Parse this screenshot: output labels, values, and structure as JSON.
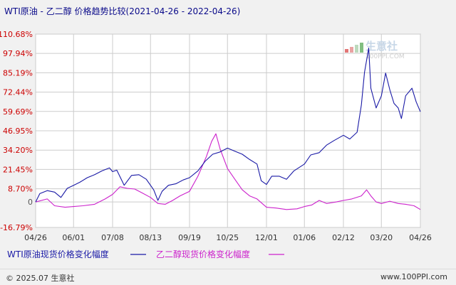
{
  "title": "WTI原油 - 乙二醇 价格趋势比较(2021-04-26 - 2022-04-26)",
  "watermark": {
    "cn": "生意社",
    "en": "100PPI.COM"
  },
  "footer": {
    "left": "© 2025.07 生意社",
    "right": "www.100PPI.com"
  },
  "colors": {
    "wti": "#1a1aa6",
    "meg": "#cc22cc",
    "grid": "#cccccc",
    "ytick_positive": "#cc0000",
    "ytick_zero": "#555555",
    "ytick_negative": "#cc0000"
  },
  "chart_data": {
    "type": "line",
    "y_unit": "%",
    "ylim": [
      -16.79,
      110.68
    ],
    "yticks": [
      -16.79,
      0,
      8.7,
      21.45,
      34.2,
      46.95,
      59.69,
      72.44,
      85.19,
      97.94,
      110.68
    ],
    "ytick_labels": [
      "-16.79%",
      "0",
      "8.70%",
      "21.45%",
      "34.20%",
      "46.95%",
      "59.69%",
      "72.44%",
      "85.19%",
      "97.94%",
      "110.68%"
    ],
    "xlim": [
      "2021-04-26",
      "2022-04-26"
    ],
    "xticks": [
      "2021-04-26",
      "2021-06-01",
      "2021-07-08",
      "2021-08-13",
      "2021-09-19",
      "2021-10-25",
      "2021-12-01",
      "2022-01-06",
      "2022-02-12",
      "2022-03-20",
      "2022-04-26"
    ],
    "xtick_labels": [
      "04/26",
      "06/01",
      "07/08",
      "08/13",
      "09/19",
      "10/25",
      "12/01",
      "01/06",
      "02/12",
      "03/20",
      "04/26"
    ],
    "legend_placement": "bottom",
    "grid": true,
    "series": [
      {
        "name": "WTI原油现货价格变化幅度",
        "color": "#1a1aa6",
        "points": [
          [
            "2021-04-26",
            0
          ],
          [
            "2021-04-30",
            5.5
          ],
          [
            "2021-05-07",
            7.5
          ],
          [
            "2021-05-14",
            6.5
          ],
          [
            "2021-05-20",
            3
          ],
          [
            "2021-05-26",
            9
          ],
          [
            "2021-06-01",
            11
          ],
          [
            "2021-06-07",
            13
          ],
          [
            "2021-06-14",
            16
          ],
          [
            "2021-06-21",
            18
          ],
          [
            "2021-06-28",
            20.5
          ],
          [
            "2021-07-05",
            22.5
          ],
          [
            "2021-07-08",
            20
          ],
          [
            "2021-07-12",
            21
          ],
          [
            "2021-07-19",
            11
          ],
          [
            "2021-07-26",
            17.5
          ],
          [
            "2021-08-02",
            18
          ],
          [
            "2021-08-09",
            15
          ],
          [
            "2021-08-16",
            8
          ],
          [
            "2021-08-20",
            1
          ],
          [
            "2021-08-24",
            7
          ],
          [
            "2021-08-30",
            11
          ],
          [
            "2021-09-06",
            12
          ],
          [
            "2021-09-13",
            14.5
          ],
          [
            "2021-09-19",
            16
          ],
          [
            "2021-09-27",
            20.5
          ],
          [
            "2021-10-04",
            27
          ],
          [
            "2021-10-11",
            31.5
          ],
          [
            "2021-10-18",
            33
          ],
          [
            "2021-10-25",
            35.5
          ],
          [
            "2021-11-01",
            33.5
          ],
          [
            "2021-11-08",
            31.5
          ],
          [
            "2021-11-15",
            28
          ],
          [
            "2021-11-22",
            25
          ],
          [
            "2021-11-26",
            14
          ],
          [
            "2021-12-01",
            11.5
          ],
          [
            "2021-12-06",
            17
          ],
          [
            "2021-12-13",
            17
          ],
          [
            "2021-12-20",
            15
          ],
          [
            "2021-12-27",
            20.5
          ],
          [
            "2022-01-06",
            25
          ],
          [
            "2022-01-12",
            31
          ],
          [
            "2022-01-20",
            32.5
          ],
          [
            "2022-01-27",
            37.5
          ],
          [
            "2022-02-03",
            40.5
          ],
          [
            "2022-02-12",
            44
          ],
          [
            "2022-02-18",
            41.5
          ],
          [
            "2022-02-25",
            46
          ],
          [
            "2022-03-01",
            64
          ],
          [
            "2022-03-04",
            85.5
          ],
          [
            "2022-03-08",
            101.5
          ],
          [
            "2022-03-10",
            75
          ],
          [
            "2022-03-15",
            62
          ],
          [
            "2022-03-20",
            70
          ],
          [
            "2022-03-24",
            85
          ],
          [
            "2022-03-28",
            74
          ],
          [
            "2022-04-01",
            65
          ],
          [
            "2022-04-05",
            62
          ],
          [
            "2022-04-08",
            55
          ],
          [
            "2022-04-12",
            70
          ],
          [
            "2022-04-18",
            75
          ],
          [
            "2022-04-22",
            66
          ],
          [
            "2022-04-26",
            59.5
          ]
        ]
      },
      {
        "name": "乙二醇现货价格变化幅度",
        "color": "#cc22cc",
        "points": [
          [
            "2021-04-26",
            0
          ],
          [
            "2021-05-07",
            2
          ],
          [
            "2021-05-14",
            -2.5
          ],
          [
            "2021-05-24",
            -3.5
          ],
          [
            "2021-06-01",
            -3
          ],
          [
            "2021-06-10",
            -2.5
          ],
          [
            "2021-06-21",
            -1.5
          ],
          [
            "2021-07-01",
            2
          ],
          [
            "2021-07-08",
            5
          ],
          [
            "2021-07-15",
            10
          ],
          [
            "2021-07-22",
            9
          ],
          [
            "2021-07-29",
            8.5
          ],
          [
            "2021-08-05",
            6
          ],
          [
            "2021-08-13",
            3
          ],
          [
            "2021-08-20",
            -1
          ],
          [
            "2021-08-27",
            -1.5
          ],
          [
            "2021-09-03",
            1
          ],
          [
            "2021-09-10",
            4
          ],
          [
            "2021-09-19",
            7
          ],
          [
            "2021-09-27",
            17
          ],
          [
            "2021-10-05",
            30
          ],
          [
            "2021-10-10",
            40
          ],
          [
            "2021-10-14",
            45
          ],
          [
            "2021-10-18",
            35
          ],
          [
            "2021-10-25",
            22
          ],
          [
            "2021-11-01",
            15
          ],
          [
            "2021-11-08",
            8
          ],
          [
            "2021-11-15",
            4
          ],
          [
            "2021-11-22",
            2
          ],
          [
            "2021-12-01",
            -3.5
          ],
          [
            "2021-12-10",
            -4
          ],
          [
            "2021-12-20",
            -5
          ],
          [
            "2021-12-30",
            -4.5
          ],
          [
            "2022-01-06",
            -3
          ],
          [
            "2022-01-13",
            -2
          ],
          [
            "2022-01-20",
            1
          ],
          [
            "2022-01-27",
            -1
          ],
          [
            "2022-02-05",
            0
          ],
          [
            "2022-02-12",
            1
          ],
          [
            "2022-02-20",
            2
          ],
          [
            "2022-03-01",
            4
          ],
          [
            "2022-03-06",
            8
          ],
          [
            "2022-03-10",
            4
          ],
          [
            "2022-03-15",
            0
          ],
          [
            "2022-03-20",
            -1
          ],
          [
            "2022-03-28",
            0.5
          ],
          [
            "2022-04-05",
            -1
          ],
          [
            "2022-04-12",
            -1.5
          ],
          [
            "2022-04-20",
            -2.5
          ],
          [
            "2022-04-26",
            -5
          ]
        ]
      }
    ]
  }
}
